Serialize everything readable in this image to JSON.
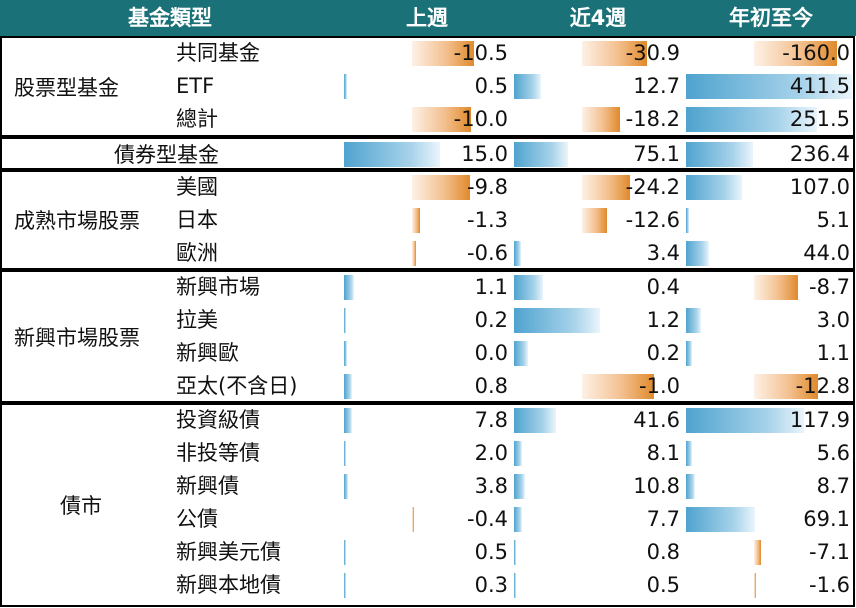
{
  "colors": {
    "header": "#1b7178",
    "positive": "#5aaad4",
    "negative": "#e08a2c"
  },
  "headers": {
    "category": "基金類型",
    "week": "上週",
    "four_week": "近4週",
    "ytd": "年初至今"
  },
  "chart_data": {
    "type": "table",
    "columns": [
      "上週",
      "近4週",
      "年初至今"
    ],
    "groups": [
      {
        "label": "股票型基金",
        "rows": [
          {
            "label": "共同基金",
            "values": [
              -10.5,
              -30.9,
              -160.0
            ],
            "display": [
              "-10.5",
              "-30.9",
              "-160.0"
            ]
          },
          {
            "label": "ETF",
            "values": [
              0.5,
              12.7,
              411.5
            ],
            "display": [
              "0.5",
              "12.7",
              "411.5"
            ]
          },
          {
            "label": "總計",
            "values": [
              -10.0,
              -18.2,
              251.5
            ],
            "display": [
              "-10.0",
              "-18.2",
              "251.5"
            ]
          }
        ]
      },
      {
        "label": "債券型基金",
        "rows": [
          {
            "label": "",
            "values": [
              15.0,
              75.1,
              236.4
            ],
            "display": [
              "15.0",
              "75.1",
              "236.4"
            ]
          }
        ]
      },
      {
        "label": "成熟市場股票",
        "rows": [
          {
            "label": "美國",
            "values": [
              -9.8,
              -24.2,
              107.0
            ],
            "display": [
              "-9.8",
              "-24.2",
              "107.0"
            ]
          },
          {
            "label": "日本",
            "values": [
              -1.3,
              -12.6,
              5.1
            ],
            "display": [
              "-1.3",
              "-12.6",
              "5.1"
            ]
          },
          {
            "label": "歐洲",
            "values": [
              -0.6,
              3.4,
              44.0
            ],
            "display": [
              "-0.6",
              "3.4",
              "44.0"
            ]
          }
        ]
      },
      {
        "label": "新興市場股票",
        "rows": [
          {
            "label": "新興市場",
            "values": [
              1.1,
              0.4,
              -8.7
            ],
            "display": [
              "1.1",
              "0.4",
              "-8.7"
            ]
          },
          {
            "label": "拉美",
            "values": [
              0.2,
              1.2,
              3.0
            ],
            "display": [
              "0.2",
              "1.2",
              "3.0"
            ]
          },
          {
            "label": "新興歐",
            "values": [
              0.0,
              0.2,
              1.1
            ],
            "display": [
              "0.0",
              "0.2",
              "1.1"
            ]
          },
          {
            "label": "亞太(不含日)",
            "values": [
              0.8,
              -1.0,
              -12.8
            ],
            "display": [
              "0.8",
              "-1.0",
              "-12.8"
            ]
          }
        ]
      },
      {
        "label": "債市",
        "rows": [
          {
            "label": "投資級債",
            "values": [
              7.8,
              41.6,
              117.9
            ],
            "display": [
              "7.8",
              "41.6",
              "117.9"
            ]
          },
          {
            "label": "非投等債",
            "values": [
              2.0,
              8.1,
              5.6
            ],
            "display": [
              "2.0",
              "8.1",
              "5.6"
            ]
          },
          {
            "label": "新興債",
            "values": [
              3.8,
              10.8,
              8.7
            ],
            "display": [
              "3.8",
              "10.8",
              "8.7"
            ]
          },
          {
            "label": "公債",
            "values": [
              -0.4,
              7.7,
              69.1
            ],
            "display": [
              "-0.4",
              "7.7",
              "69.1"
            ]
          },
          {
            "label": "新興美元債",
            "values": [
              0.5,
              0.8,
              -7.1
            ],
            "display": [
              "0.5",
              "0.8",
              "-7.1"
            ]
          },
          {
            "label": "新興本地債",
            "values": [
              0.3,
              0.5,
              -1.6
            ],
            "display": [
              "0.3",
              "0.5",
              "-1.6"
            ]
          }
        ]
      }
    ]
  }
}
